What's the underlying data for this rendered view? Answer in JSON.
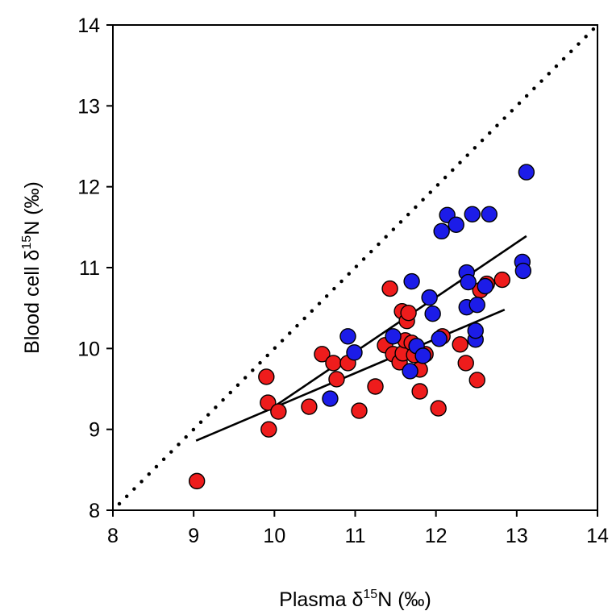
{
  "chart_data": {
    "type": "scatter",
    "title": "",
    "xlabel": {
      "prefix": "Plasma δ",
      "sup": "15",
      "suffix": "N (‰)"
    },
    "ylabel": {
      "prefix": "Blood cell δ",
      "sup": "15",
      "suffix": "N (‰)"
    },
    "xlim": [
      8,
      14
    ],
    "ylim": [
      8,
      14
    ],
    "xticks": [
      "8",
      "9",
      "10",
      "11",
      "12",
      "13",
      "14"
    ],
    "yticks": [
      "8",
      "9",
      "10",
      "11",
      "12",
      "13",
      "14"
    ],
    "grid": false,
    "legend": "none",
    "series": [
      {
        "color": "#ee1c1c",
        "points": [
          [
            9.04,
            8.36
          ],
          [
            9.9,
            9.65
          ],
          [
            9.92,
            9.33
          ],
          [
            9.93,
            9.0
          ],
          [
            10.05,
            9.22
          ],
          [
            10.43,
            9.28
          ],
          [
            10.59,
            9.93
          ],
          [
            10.73,
            9.82
          ],
          [
            10.77,
            9.62
          ],
          [
            10.91,
            9.82
          ],
          [
            11.05,
            9.23
          ],
          [
            11.25,
            9.53
          ],
          [
            11.37,
            10.04
          ],
          [
            11.43,
            10.74
          ],
          [
            11.47,
            9.93
          ],
          [
            11.55,
            9.83
          ],
          [
            11.58,
            10.46
          ],
          [
            11.59,
            9.94
          ],
          [
            11.62,
            10.1
          ],
          [
            11.64,
            10.34
          ],
          [
            11.66,
            10.44
          ],
          [
            11.7,
            10.07
          ],
          [
            11.73,
            9.92
          ],
          [
            11.8,
            9.74
          ],
          [
            11.8,
            9.47
          ],
          [
            11.87,
            9.93
          ],
          [
            12.03,
            9.26
          ],
          [
            12.08,
            10.15
          ],
          [
            12.3,
            10.05
          ],
          [
            12.37,
            9.82
          ],
          [
            12.51,
            9.61
          ],
          [
            12.55,
            10.72
          ],
          [
            12.63,
            10.8
          ],
          [
            12.82,
            10.85
          ]
        ]
      },
      {
        "color": "#1c1ce8",
        "points": [
          [
            10.69,
            9.38
          ],
          [
            10.91,
            10.15
          ],
          [
            10.99,
            9.95
          ],
          [
            11.47,
            10.15
          ],
          [
            11.68,
            9.72
          ],
          [
            11.7,
            10.83
          ],
          [
            11.76,
            10.03
          ],
          [
            11.84,
            9.91
          ],
          [
            11.92,
            10.63
          ],
          [
            11.96,
            10.43
          ],
          [
            12.04,
            10.12
          ],
          [
            12.07,
            11.45
          ],
          [
            12.14,
            11.65
          ],
          [
            12.25,
            11.53
          ],
          [
            12.38,
            10.51
          ],
          [
            12.38,
            10.94
          ],
          [
            12.4,
            10.82
          ],
          [
            12.45,
            11.66
          ],
          [
            12.49,
            10.11
          ],
          [
            12.49,
            10.22
          ],
          [
            12.51,
            10.54
          ],
          [
            12.61,
            10.77
          ],
          [
            12.66,
            11.66
          ],
          [
            13.07,
            11.07
          ],
          [
            13.08,
            10.96
          ],
          [
            13.12,
            12.18
          ]
        ]
      }
    ],
    "fit_lines": [
      {
        "style": "solid",
        "points": [
          [
            9.03,
            8.86
          ],
          [
            12.85,
            10.48
          ]
        ]
      },
      {
        "style": "solid",
        "points": [
          [
            9.95,
            9.25
          ],
          [
            13.12,
            11.39
          ]
        ]
      }
    ],
    "reference_line": {
      "style": "dotted",
      "points": [
        [
          8.08,
          8.08
        ],
        [
          13.95,
          13.95
        ]
      ]
    }
  }
}
